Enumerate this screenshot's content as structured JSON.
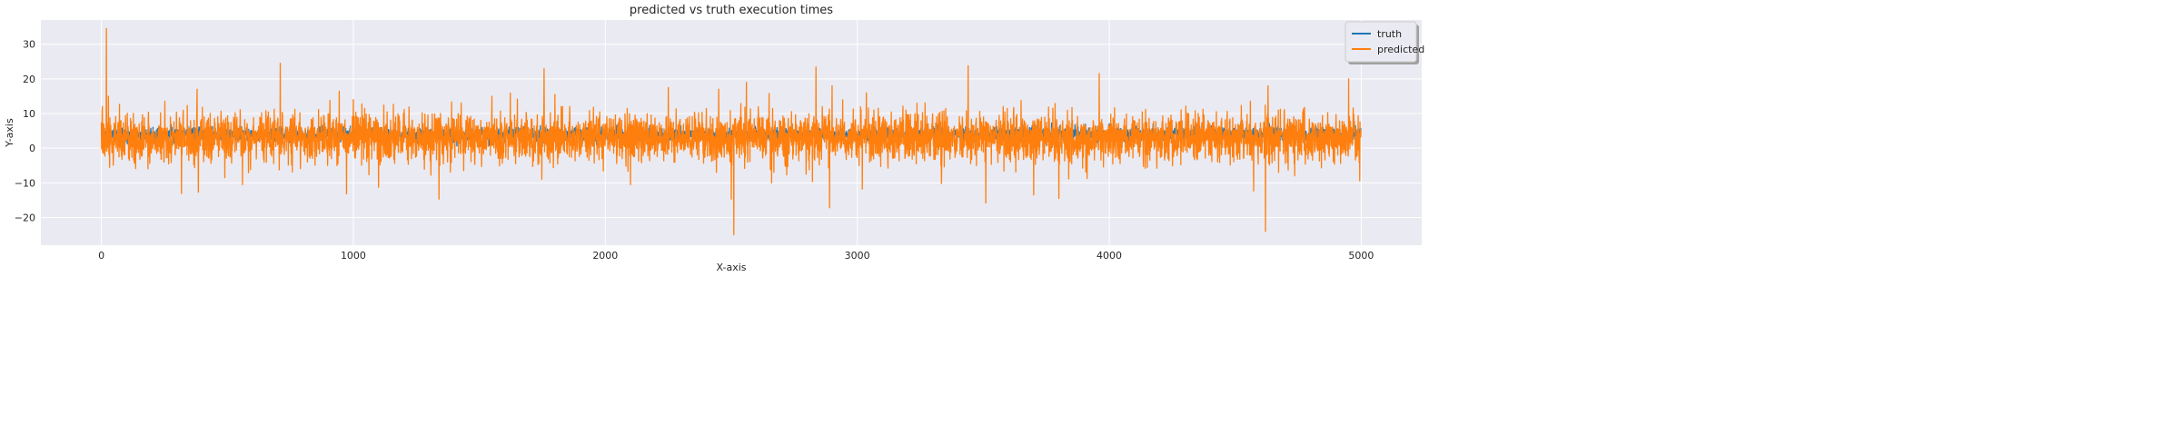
{
  "chart_data": {
    "type": "line",
    "title": "predicted vs truth execution times",
    "xlabel": "X-axis",
    "ylabel": "Y-axis",
    "xlim": [
      -240,
      5240
    ],
    "ylim": [
      -28,
      37
    ],
    "xticks": [
      0,
      1000,
      2000,
      3000,
      4000,
      5000
    ],
    "yticks": [
      -20,
      -10,
      0,
      10,
      20,
      30
    ],
    "grid": true,
    "legend_position": "upper-right",
    "series": [
      {
        "name": "truth",
        "color": "#1f77b4",
        "n_points": 5000,
        "typical_range": [
          2,
          6
        ]
      },
      {
        "name": "predicted",
        "color": "#ff7f0e",
        "n_points": 5000,
        "typical_range": [
          -4,
          10
        ],
        "notable_points": [
          [
            20,
            34.5
          ],
          [
            28,
            15
          ],
          [
            380,
            17
          ],
          [
            385,
            -12.7
          ],
          [
            490,
            -8.5
          ],
          [
            560,
            -10.5
          ],
          [
            710,
            24.5
          ],
          [
            1000,
            14
          ],
          [
            1100,
            -11.3
          ],
          [
            1340,
            -14.7
          ],
          [
            1550,
            15
          ],
          [
            1800,
            15.5
          ],
          [
            2100,
            -10.5
          ],
          [
            2250,
            17.5
          ],
          [
            2450,
            17
          ],
          [
            2500,
            -14.7
          ],
          [
            2510,
            -25
          ],
          [
            2560,
            19
          ],
          [
            2890,
            -17.2
          ],
          [
            2900,
            18
          ],
          [
            3020,
            -11.8
          ],
          [
            3440,
            23.8
          ],
          [
            3510,
            -15.8
          ],
          [
            3700,
            -13.5
          ],
          [
            3800,
            -14.5
          ],
          [
            3960,
            21.5
          ],
          [
            4620,
            -24
          ],
          [
            4630,
            18
          ],
          [
            4950,
            20
          ]
        ]
      }
    ]
  }
}
